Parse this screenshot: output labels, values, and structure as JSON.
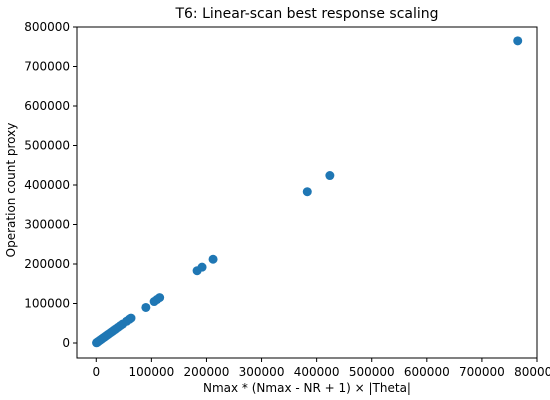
{
  "chart_data": {
    "type": "scatter",
    "title": "T6: Linear-scan best response scaling",
    "xlabel": "Nmax * (Nmax - NR + 1) × |Theta|",
    "ylabel": "Operation count proxy",
    "xlim": [
      -35000,
      800000
    ],
    "ylim": [
      -38000,
      800000
    ],
    "xticks": [
      0,
      100000,
      200000,
      300000,
      400000,
      500000,
      600000,
      700000,
      800000
    ],
    "yticks": [
      0,
      100000,
      200000,
      300000,
      400000,
      500000,
      600000,
      700000,
      800000
    ],
    "xtick_labels": [
      "0",
      "100000",
      "200000",
      "300000",
      "400000",
      "500000",
      "600000",
      "700000",
      "800000"
    ],
    "ytick_labels": [
      "0",
      "100000",
      "200000",
      "300000",
      "400000",
      "500000",
      "600000",
      "700000",
      "800000"
    ],
    "grid": false,
    "series": [
      {
        "color": "#1f77b4",
        "points": [
          [
            500,
            500
          ],
          [
            1500,
            1500
          ],
          [
            3000,
            3000
          ],
          [
            4500,
            4500
          ],
          [
            6000,
            6000
          ],
          [
            8000,
            8000
          ],
          [
            10000,
            10000
          ],
          [
            12000,
            12000
          ],
          [
            14000,
            14000
          ],
          [
            16000,
            16000
          ],
          [
            18000,
            18000
          ],
          [
            20000,
            20000
          ],
          [
            22500,
            22500
          ],
          [
            25000,
            25000
          ],
          [
            27500,
            27500
          ],
          [
            30000,
            30000
          ],
          [
            33000,
            33000
          ],
          [
            36000,
            36000
          ],
          [
            40000,
            40000
          ],
          [
            44000,
            44000
          ],
          [
            48000,
            48000
          ],
          [
            55000,
            55000
          ],
          [
            60000,
            60000
          ],
          [
            63000,
            63000
          ],
          [
            90000,
            90000
          ],
          [
            105000,
            105000
          ],
          [
            110000,
            110000
          ],
          [
            115000,
            115000
          ],
          [
            183000,
            183000
          ],
          [
            192000,
            192000
          ],
          [
            212000,
            212000
          ],
          [
            383000,
            383000
          ],
          [
            424000,
            424000
          ],
          [
            765000,
            765000
          ]
        ]
      }
    ]
  }
}
